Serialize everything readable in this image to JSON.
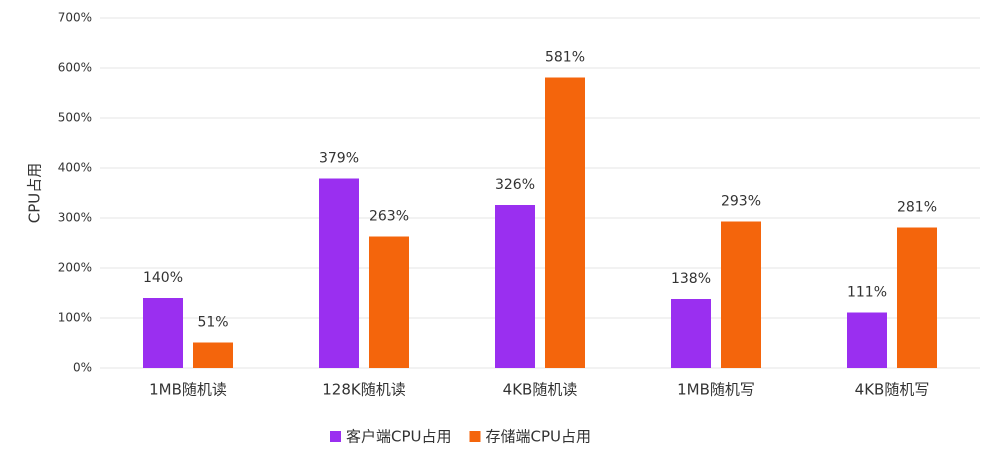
{
  "chart_data": {
    "type": "bar",
    "y_label": "CPU占用",
    "categories": [
      "1MB随机读",
      "128K随机读",
      "4KB随机读",
      "1MB随机写",
      "4KB随机写"
    ],
    "series": [
      {
        "name": "客户端CPU占用",
        "color": "#9a2ff0",
        "values": [
          140,
          379,
          326,
          138,
          111
        ],
        "value_labels": [
          "140%",
          "379%",
          "326%",
          "138%",
          "111%"
        ]
      },
      {
        "name": "存储端CPU占用",
        "color": "#f4650c",
        "values": [
          51,
          263,
          581,
          293,
          281
        ],
        "value_labels": [
          "51%",
          "263%",
          "581%",
          "293%",
          "281%"
        ]
      }
    ],
    "ylim": [
      0,
      700
    ],
    "yticks": [
      {
        "value": 0,
        "label": "0%"
      },
      {
        "value": 100,
        "label": "100%"
      },
      {
        "value": 200,
        "label": "200%"
      },
      {
        "value": 300,
        "label": "300%"
      },
      {
        "value": 400,
        "label": "400%"
      },
      {
        "value": 500,
        "label": "500%"
      },
      {
        "value": 600,
        "label": "600%"
      },
      {
        "value": 700,
        "label": "700%"
      }
    ],
    "grid": true
  }
}
